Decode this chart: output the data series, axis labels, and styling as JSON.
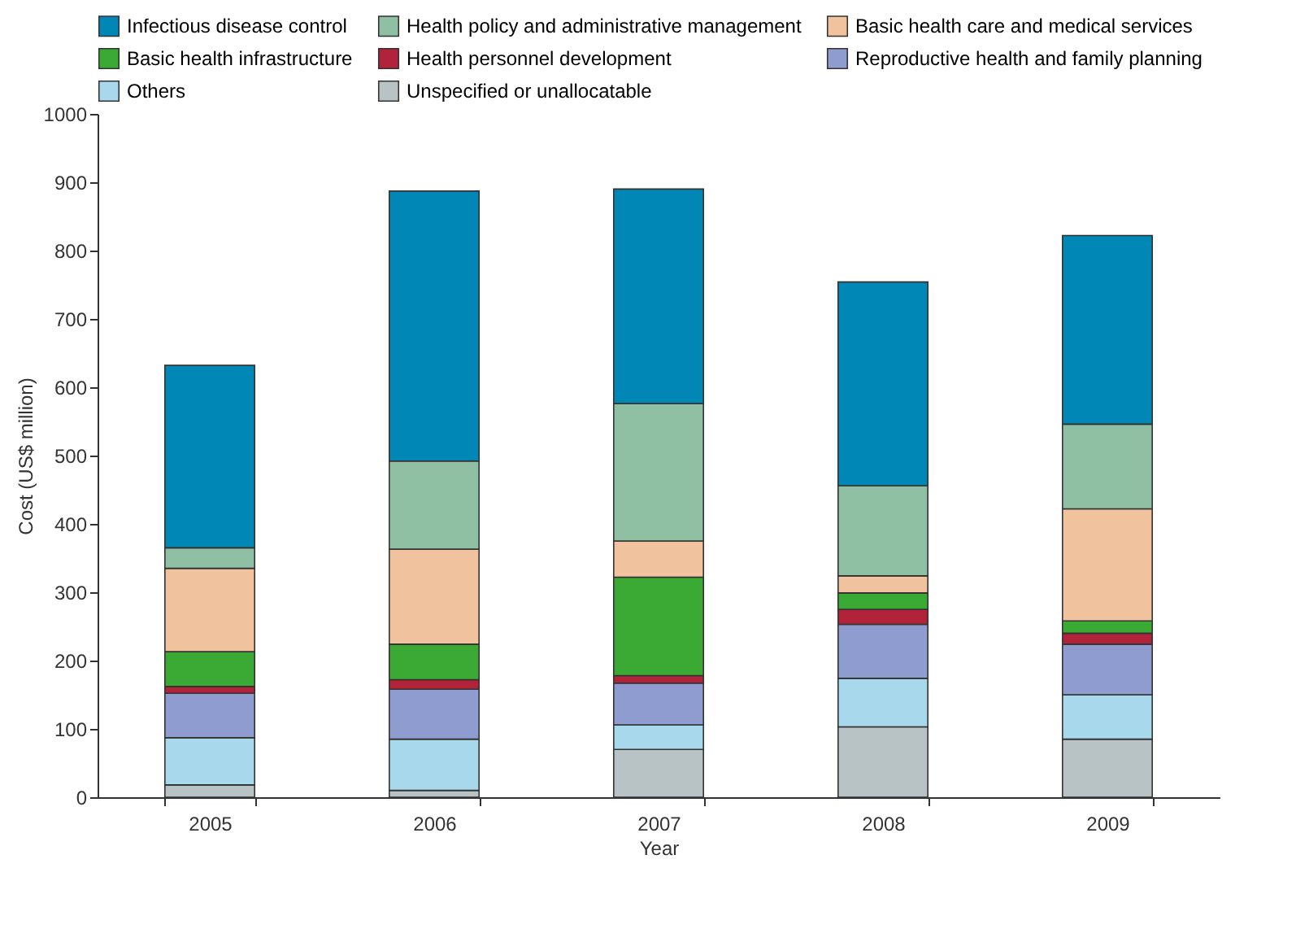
{
  "chart_data": {
    "type": "bar",
    "stacked": true,
    "xlabel": "Year",
    "ylabel": "Cost (US$ million)",
    "categories": [
      "2005",
      "2006",
      "2007",
      "2008",
      "2009"
    ],
    "series": [
      {
        "name": "Unspecified or unallocatable",
        "color": "#b7c3c5",
        "values": [
          18,
          10,
          70,
          103,
          85
        ]
      },
      {
        "name": "Others",
        "color": "#a8d8ec",
        "values": [
          69,
          75,
          36,
          71,
          65
        ]
      },
      {
        "name": "Reproductive health and family planning",
        "color": "#8e9cd0",
        "values": [
          65,
          73,
          61,
          79,
          74
        ]
      },
      {
        "name": "Health personnel development",
        "color": "#b0233a",
        "values": [
          10,
          14,
          11,
          22,
          16
        ]
      },
      {
        "name": "Basic health infrastructure",
        "color": "#3aaa35",
        "values": [
          51,
          52,
          144,
          24,
          18
        ]
      },
      {
        "name": "Basic health care and medical services",
        "color": "#f0c29e",
        "values": [
          122,
          139,
          53,
          25,
          164
        ]
      },
      {
        "name": "Health policy and administrative management",
        "color": "#8fc0a3",
        "values": [
          30,
          129,
          201,
          132,
          124
        ]
      },
      {
        "name": "Infectious disease control",
        "color": "#0087b5",
        "values": [
          267,
          395,
          314,
          298,
          276
        ]
      }
    ],
    "ylim": [
      0,
      1000
    ],
    "yticks": [
      0,
      100,
      200,
      300,
      400,
      500,
      600,
      700,
      800,
      900,
      1000
    ],
    "grid": false,
    "legend": "top"
  }
}
